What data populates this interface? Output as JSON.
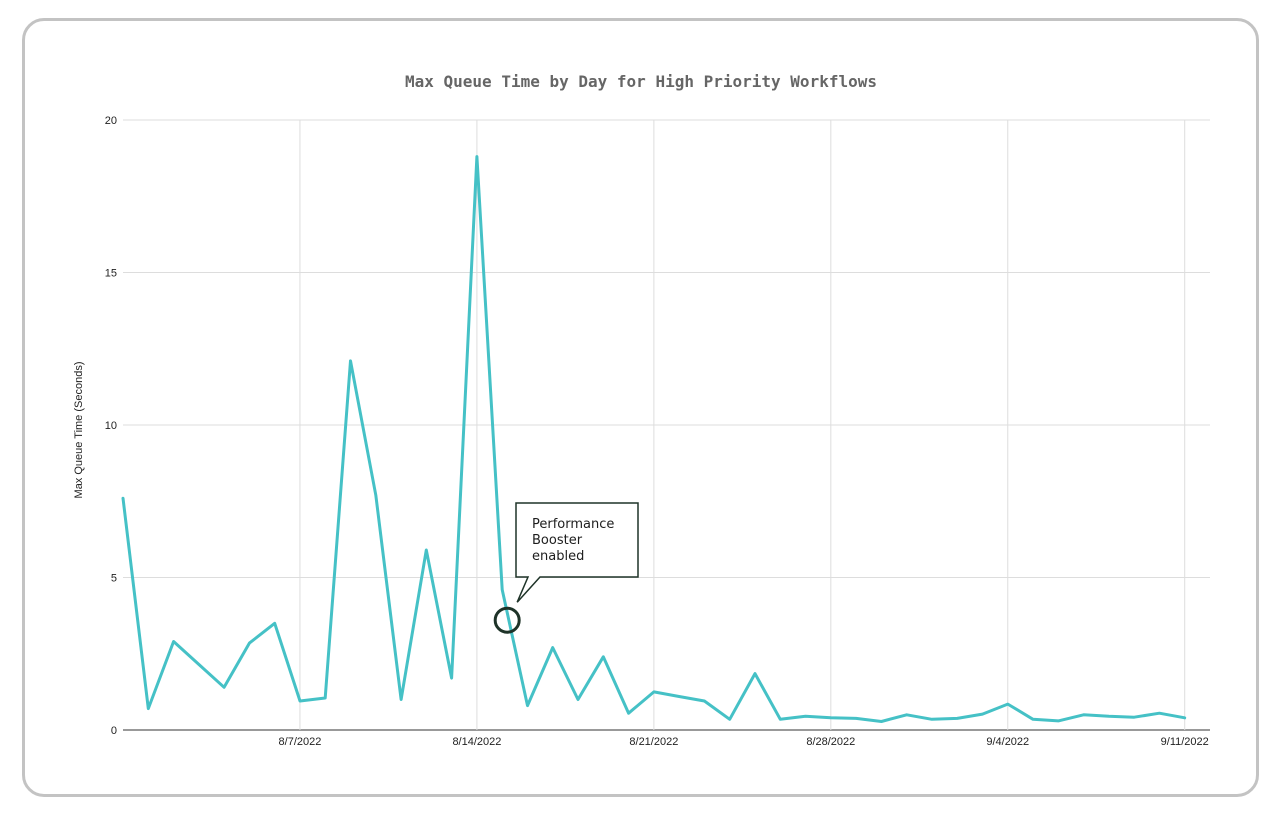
{
  "chart_data": {
    "type": "line",
    "title": "Max Queue Time by Day for High Priority Workflows",
    "xlabel": "",
    "ylabel": "Max Queue Time (Seconds)",
    "ylim": [
      0,
      20
    ],
    "yticks": [
      0,
      5,
      10,
      15,
      20
    ],
    "x_start": "7/31/2022",
    "x_end": "9/12/2022",
    "xticks": [
      "8/7/2022",
      "8/14/2022",
      "8/21/2022",
      "8/28/2022",
      "9/4/2022",
      "9/11/2022"
    ],
    "grid": true,
    "series_color": "#45c1c6",
    "series": [
      {
        "points": [
          [
            "7/31/2022",
            7.6
          ],
          [
            "8/1/2022",
            0.7
          ],
          [
            "8/2/2022",
            2.9
          ],
          [
            "8/3/2022",
            2.15
          ],
          [
            "8/4/2022",
            1.4
          ],
          [
            "8/5/2022",
            2.85
          ],
          [
            "8/6/2022",
            3.5
          ],
          [
            "8/7/2022",
            0.95
          ],
          [
            "8/8/2022",
            1.05
          ],
          [
            "8/9/2022",
            12.1
          ],
          [
            "8/10/2022",
            7.7
          ],
          [
            "8/11/2022",
            1.0
          ],
          [
            "8/12/2022",
            5.9
          ],
          [
            "8/13/2022",
            1.7
          ],
          [
            "8/14/2022",
            18.8
          ],
          [
            "8/15/2022",
            4.6
          ],
          [
            "8/16/2022",
            0.8
          ],
          [
            "8/17/2022",
            2.7
          ],
          [
            "8/18/2022",
            1.0
          ],
          [
            "8/19/2022",
            2.4
          ],
          [
            "8/20/2022",
            0.55
          ],
          [
            "8/21/2022",
            1.25
          ],
          [
            "8/22/2022",
            1.1
          ],
          [
            "8/23/2022",
            0.95
          ],
          [
            "8/24/2022",
            0.35
          ],
          [
            "8/25/2022",
            1.85
          ],
          [
            "8/26/2022",
            0.35
          ],
          [
            "8/27/2022",
            0.45
          ],
          [
            "8/28/2022",
            0.4
          ],
          [
            "8/29/2022",
            0.38
          ],
          [
            "8/30/2022",
            0.28
          ],
          [
            "8/31/2022",
            0.5
          ],
          [
            "9/1/2022",
            0.35
          ],
          [
            "9/2/2022",
            0.38
          ],
          [
            "9/3/2022",
            0.52
          ],
          [
            "9/4/2022",
            0.85
          ],
          [
            "9/5/2022",
            0.35
          ],
          [
            "9/6/2022",
            0.3
          ],
          [
            "9/7/2022",
            0.5
          ],
          [
            "9/8/2022",
            0.45
          ],
          [
            "9/9/2022",
            0.42
          ],
          [
            "9/10/2022",
            0.55
          ],
          [
            "9/11/2022",
            0.4
          ]
        ]
      }
    ],
    "annotation": {
      "text_lines": [
        "Performance",
        "Booster",
        "enabled"
      ],
      "date": "8/15/2022",
      "value": 3.6
    }
  }
}
